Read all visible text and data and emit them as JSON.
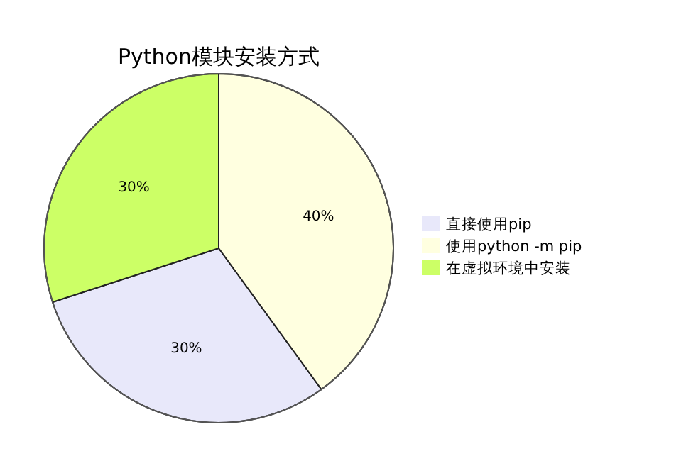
{
  "chart_data": {
    "type": "pie",
    "title": "Python模块安装方式",
    "categories": [
      "直接使用pip",
      "使用python -m pip",
      "在虚拟环境中安装"
    ],
    "values": [
      30,
      40,
      30
    ],
    "colors": [
      "#e8e8fa",
      "#ffffe0",
      "#ccff66"
    ],
    "value_labels": [
      "30%",
      "40%",
      "30%"
    ],
    "legend": "right"
  }
}
